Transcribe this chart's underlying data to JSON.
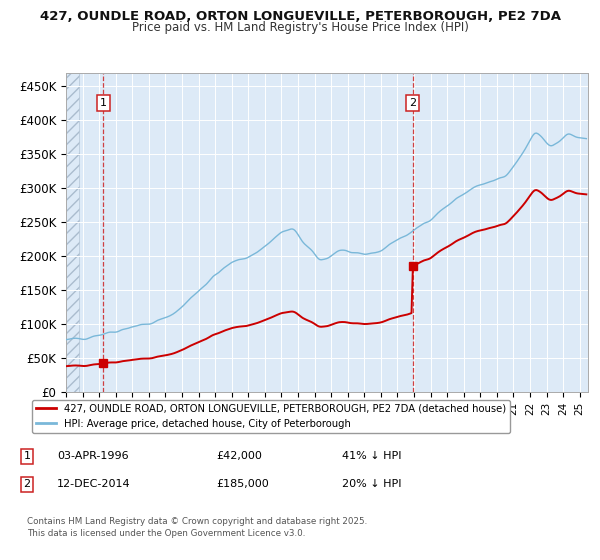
{
  "title1": "427, OUNDLE ROAD, ORTON LONGUEVILLE, PETERBOROUGH, PE2 7DA",
  "title2": "Price paid vs. HM Land Registry's House Price Index (HPI)",
  "purchase1_date": "03-APR-1996",
  "purchase1_price": 42000,
  "purchase1_label": "41% ↓ HPI",
  "purchase2_date": "12-DEC-2014",
  "purchase2_price": 185000,
  "purchase2_label": "20% ↓ HPI",
  "legend1": "427, OUNDLE ROAD, ORTON LONGUEVILLE, PETERBOROUGH, PE2 7DA (detached house)",
  "legend2": "HPI: Average price, detached house, City of Peterborough",
  "footer": "Contains HM Land Registry data © Crown copyright and database right 2025.\nThis data is licensed under the Open Government Licence v3.0.",
  "hpi_color": "#7ab8d9",
  "price_color": "#cc0000",
  "bg_color": "#ddeaf7",
  "grid_color": "#ffffff",
  "ylim": [
    0,
    470000
  ],
  "yticks": [
    0,
    50000,
    100000,
    150000,
    200000,
    250000,
    300000,
    350000,
    400000,
    450000
  ],
  "ytick_labels": [
    "£0",
    "£50K",
    "£100K",
    "£150K",
    "£200K",
    "£250K",
    "£300K",
    "£350K",
    "£400K",
    "£450K"
  ],
  "purchase1_x": 1996.25,
  "purchase2_x": 2014.92,
  "xlim_start": 1994.0,
  "xlim_end": 2025.5
}
